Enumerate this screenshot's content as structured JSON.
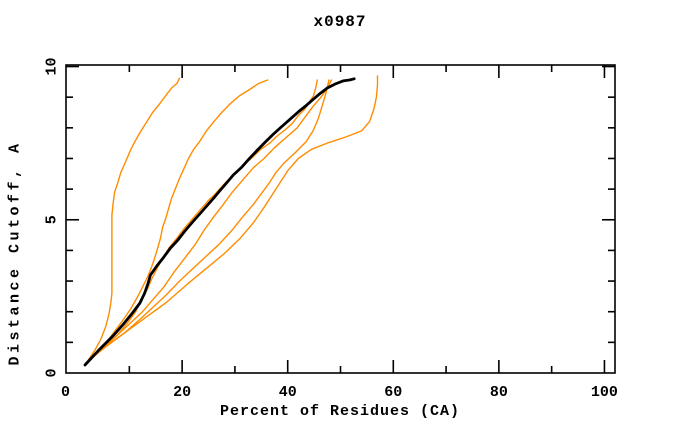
{
  "chart_data": {
    "type": "line",
    "title": "x0987",
    "xlabel": "Percent of Residues (CA)",
    "ylabel": "Distance Cutoff, A",
    "xlim": [
      -2,
      102
    ],
    "ylim": [
      0,
      10.05
    ],
    "grid": false,
    "legend": "none",
    "frame_color": "#000000",
    "x_ticks": {
      "major": [
        20,
        40,
        60,
        80,
        100
      ],
      "minor": [
        10,
        30,
        50,
        70,
        90
      ],
      "labels": [
        {
          "text": "0",
          "at": -2.1
        },
        {
          "text": "20",
          "at": 20
        },
        {
          "text": "40",
          "at": 40
        },
        {
          "text": "60",
          "at": 60
        },
        {
          "text": "80",
          "at": 80
        },
        {
          "text": "100",
          "at": 100
        }
      ]
    },
    "y_ticks": {
      "major": [
        5,
        10
      ],
      "minor": [
        1,
        2,
        3,
        4,
        6,
        7,
        8,
        9
      ],
      "labels": [
        {
          "text": "0",
          "at": 0
        },
        {
          "text": "5",
          "at": 5
        },
        {
          "text": "10",
          "at": 10
        }
      ]
    },
    "colors": {
      "main_model": "#000000",
      "other_models": "#ff8c00"
    },
    "series": [
      {
        "name": "orange-curve-1",
        "color": "#ff8c00",
        "width": 1.4,
        "points": [
          [
            1.75,
            0.3
          ],
          [
            3.5,
            0.75
          ],
          [
            4.6,
            1.1
          ],
          [
            5.5,
            1.5
          ],
          [
            6.1,
            1.9
          ],
          [
            6.5,
            2.3
          ],
          [
            6.7,
            2.6
          ],
          [
            6.7,
            3.0
          ],
          [
            6.7,
            3.4
          ],
          [
            6.7,
            3.7
          ],
          [
            6.7,
            4.1
          ],
          [
            6.7,
            4.4
          ],
          [
            6.7,
            4.8
          ],
          [
            6.7,
            5.15
          ],
          [
            6.9,
            5.5
          ],
          [
            7.2,
            5.9
          ],
          [
            7.8,
            6.2
          ],
          [
            8.4,
            6.55
          ],
          [
            9.3,
            6.9
          ],
          [
            10.3,
            7.3
          ],
          [
            11.2,
            7.6
          ],
          [
            12.2,
            7.9
          ],
          [
            13.3,
            8.2
          ],
          [
            14.4,
            8.5
          ],
          [
            15.6,
            8.75
          ],
          [
            16.9,
            9.05
          ],
          [
            18.0,
            9.3
          ],
          [
            19.0,
            9.45
          ],
          [
            19.5,
            9.62
          ]
        ]
      },
      {
        "name": "orange-curve-2",
        "color": "#ff8c00",
        "width": 1.4,
        "points": [
          [
            1.75,
            0.3
          ],
          [
            4.4,
            0.75
          ],
          [
            5.9,
            1.05
          ],
          [
            7.4,
            1.4
          ],
          [
            8.9,
            1.75
          ],
          [
            10.3,
            2.1
          ],
          [
            11.6,
            2.5
          ],
          [
            12.5,
            2.8
          ],
          [
            13.5,
            3.15
          ],
          [
            14.2,
            3.45
          ],
          [
            14.8,
            3.75
          ],
          [
            15.4,
            4.1
          ],
          [
            15.9,
            4.4
          ],
          [
            16.3,
            4.75
          ],
          [
            16.9,
            5.05
          ],
          [
            17.5,
            5.4
          ],
          [
            18.0,
            5.7
          ],
          [
            18.8,
            6.05
          ],
          [
            19.5,
            6.35
          ],
          [
            20.3,
            6.65
          ],
          [
            21.2,
            7.0
          ],
          [
            22.2,
            7.3
          ],
          [
            23.3,
            7.55
          ],
          [
            24.6,
            7.9
          ],
          [
            26.0,
            8.2
          ],
          [
            27.5,
            8.5
          ],
          [
            29.2,
            8.8
          ],
          [
            30.9,
            9.05
          ],
          [
            32.8,
            9.25
          ],
          [
            34.5,
            9.45
          ],
          [
            36.2,
            9.56
          ]
        ]
      },
      {
        "name": "orange-curve-3",
        "color": "#ff8c00",
        "width": 1.4,
        "points": [
          [
            1.75,
            0.33
          ],
          [
            5.3,
            0.85
          ],
          [
            7.8,
            1.25
          ],
          [
            9.7,
            1.65
          ],
          [
            11.2,
            2.0
          ],
          [
            12.3,
            2.4
          ],
          [
            13.3,
            2.7
          ],
          [
            14.2,
            3.05
          ],
          [
            15.2,
            3.4
          ],
          [
            16.3,
            3.75
          ],
          [
            17.6,
            4.1
          ],
          [
            19.0,
            4.4
          ],
          [
            20.3,
            4.7
          ],
          [
            21.8,
            5.0
          ],
          [
            23.3,
            5.3
          ],
          [
            24.8,
            5.6
          ],
          [
            26.3,
            5.85
          ],
          [
            27.9,
            6.15
          ],
          [
            29.6,
            6.45
          ],
          [
            31.4,
            6.75
          ],
          [
            33.1,
            7.0
          ],
          [
            34.9,
            7.3
          ],
          [
            36.6,
            7.5
          ],
          [
            38.1,
            7.75
          ],
          [
            39.6,
            7.95
          ],
          [
            40.9,
            8.15
          ],
          [
            42.0,
            8.4
          ],
          [
            43.2,
            8.6
          ],
          [
            44.1,
            8.85
          ],
          [
            44.9,
            9.05
          ],
          [
            45.3,
            9.3
          ],
          [
            45.6,
            9.56
          ]
        ]
      },
      {
        "name": "orange-curve-4",
        "color": "#ff8c00",
        "width": 1.4,
        "points": [
          [
            1.75,
            0.33
          ],
          [
            4.8,
            0.8
          ],
          [
            7.5,
            1.2
          ],
          [
            10.0,
            1.6
          ],
          [
            12.5,
            2.0
          ],
          [
            14.5,
            2.4
          ],
          [
            16.5,
            2.8
          ],
          [
            18.5,
            3.3
          ],
          [
            20.5,
            3.75
          ],
          [
            22.5,
            4.2
          ],
          [
            24.2,
            4.67
          ],
          [
            26.0,
            5.1
          ],
          [
            27.8,
            5.5
          ],
          [
            29.5,
            5.9
          ],
          [
            31.5,
            6.3
          ],
          [
            33.5,
            6.7
          ],
          [
            35.5,
            7.0
          ],
          [
            37.5,
            7.35
          ],
          [
            39.8,
            7.7
          ],
          [
            41.8,
            8.0
          ],
          [
            43.3,
            8.35
          ],
          [
            44.8,
            8.7
          ],
          [
            46.3,
            9.0
          ],
          [
            47.5,
            9.3
          ],
          [
            48.3,
            9.56
          ]
        ]
      },
      {
        "name": "orange-curve-5",
        "color": "#ff8c00",
        "width": 1.4,
        "points": [
          [
            1.75,
            0.33
          ],
          [
            5.5,
            0.85
          ],
          [
            9.0,
            1.3
          ],
          [
            12.0,
            1.75
          ],
          [
            14.5,
            2.15
          ],
          [
            17.0,
            2.55
          ],
          [
            19.5,
            3.0
          ],
          [
            22.0,
            3.4
          ],
          [
            24.5,
            3.8
          ],
          [
            27.0,
            4.2
          ],
          [
            29.5,
            4.67
          ],
          [
            31.5,
            5.1
          ],
          [
            33.5,
            5.5
          ],
          [
            35.2,
            5.9
          ],
          [
            36.5,
            6.2
          ],
          [
            37.8,
            6.55
          ],
          [
            39.3,
            6.85
          ],
          [
            41.5,
            7.2
          ],
          [
            43.5,
            7.55
          ],
          [
            44.8,
            7.9
          ],
          [
            45.8,
            8.3
          ],
          [
            46.5,
            8.7
          ],
          [
            47.2,
            9.1
          ],
          [
            47.8,
            9.56
          ]
        ]
      },
      {
        "name": "orange-curve-6",
        "color": "#ff8c00",
        "width": 1.4,
        "points": [
          [
            1.75,
            0.33
          ],
          [
            5.0,
            0.8
          ],
          [
            9.0,
            1.3
          ],
          [
            13.0,
            1.8
          ],
          [
            17.0,
            2.3
          ],
          [
            21.0,
            2.9
          ],
          [
            24.5,
            3.4
          ],
          [
            28.0,
            3.9
          ],
          [
            31.0,
            4.4
          ],
          [
            33.5,
            4.9
          ],
          [
            35.5,
            5.4
          ],
          [
            37.0,
            5.8
          ],
          [
            38.5,
            6.2
          ],
          [
            40.0,
            6.6
          ],
          [
            42.0,
            7.0
          ],
          [
            44.5,
            7.3
          ],
          [
            47.5,
            7.5
          ],
          [
            51.0,
            7.7
          ],
          [
            54.0,
            7.9
          ],
          [
            55.5,
            8.2
          ],
          [
            56.3,
            8.6
          ],
          [
            56.8,
            9.0
          ],
          [
            57.0,
            9.4
          ],
          [
            57.0,
            9.69
          ]
        ]
      },
      {
        "name": "main-model-curve",
        "color": "#000000",
        "width": 2.8,
        "points": [
          [
            1.6,
            0.26
          ],
          [
            4.4,
            0.78
          ],
          [
            6.9,
            1.21
          ],
          [
            8.9,
            1.6
          ],
          [
            10.6,
            1.96
          ],
          [
            12.0,
            2.28
          ],
          [
            12.9,
            2.61
          ],
          [
            13.5,
            2.9
          ],
          [
            14.0,
            3.2
          ],
          [
            15.2,
            3.49
          ],
          [
            16.5,
            3.78
          ],
          [
            17.8,
            4.08
          ],
          [
            19.2,
            4.34
          ],
          [
            20.5,
            4.63
          ],
          [
            22.0,
            4.93
          ],
          [
            23.5,
            5.22
          ],
          [
            24.8,
            5.48
          ],
          [
            26.0,
            5.71
          ],
          [
            27.1,
            5.94
          ],
          [
            28.4,
            6.2
          ],
          [
            29.7,
            6.46
          ],
          [
            31.3,
            6.72
          ],
          [
            32.8,
            7.01
          ],
          [
            34.3,
            7.28
          ],
          [
            35.8,
            7.54
          ],
          [
            37.3,
            7.8
          ],
          [
            39.0,
            8.06
          ],
          [
            40.5,
            8.29
          ],
          [
            42.0,
            8.52
          ],
          [
            43.6,
            8.74
          ],
          [
            44.9,
            8.94
          ],
          [
            46.2,
            9.13
          ],
          [
            47.5,
            9.3
          ],
          [
            49.0,
            9.43
          ],
          [
            50.5,
            9.53
          ],
          [
            51.7,
            9.56
          ],
          [
            52.6,
            9.6
          ]
        ]
      }
    ]
  }
}
